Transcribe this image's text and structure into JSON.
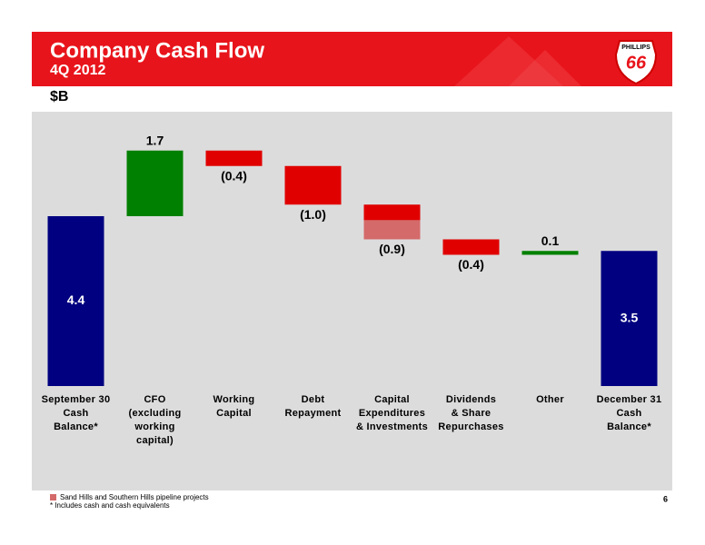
{
  "header": {
    "title": "Company Cash Flow",
    "subtitle": "4Q 2012",
    "logo_top": "PHILLIPS",
    "logo_number": "66"
  },
  "chart_data": {
    "type": "waterfall",
    "unit_label": "$B",
    "categories": [
      [
        "September 30",
        "Cash",
        "Balance*"
      ],
      [
        "CFO",
        "(excluding",
        "working",
        "capital)"
      ],
      [
        "Working",
        "Capital"
      ],
      [
        "Debt",
        "Repayment"
      ],
      [
        "Capital",
        "Expenditures",
        "& Investments"
      ],
      [
        "Dividends",
        "& Share",
        "Repurchases"
      ],
      [
        "Other"
      ],
      [
        "December 31",
        "Cash",
        "Balance*"
      ]
    ],
    "values": [
      4.4,
      1.7,
      -0.4,
      -1.0,
      -0.9,
      -0.4,
      0.1,
      3.5
    ],
    "value_labels": [
      "4.4",
      "1.7",
      "(0.4)",
      "(1.0)",
      "(0.9)",
      "(0.4)",
      "0.1",
      "3.5"
    ],
    "colors": {
      "total": "#000080",
      "increase": "#008000",
      "decrease": "#e00000"
    },
    "highlight": {
      "name": "Sand Hills and Southern Hills pipeline projects",
      "color": "#d46a6a",
      "values": [
        null,
        null,
        null,
        null,
        -0.5,
        null,
        null,
        null
      ]
    }
  },
  "footnote": "* Includes cash and cash equivalents",
  "page_number": "6"
}
